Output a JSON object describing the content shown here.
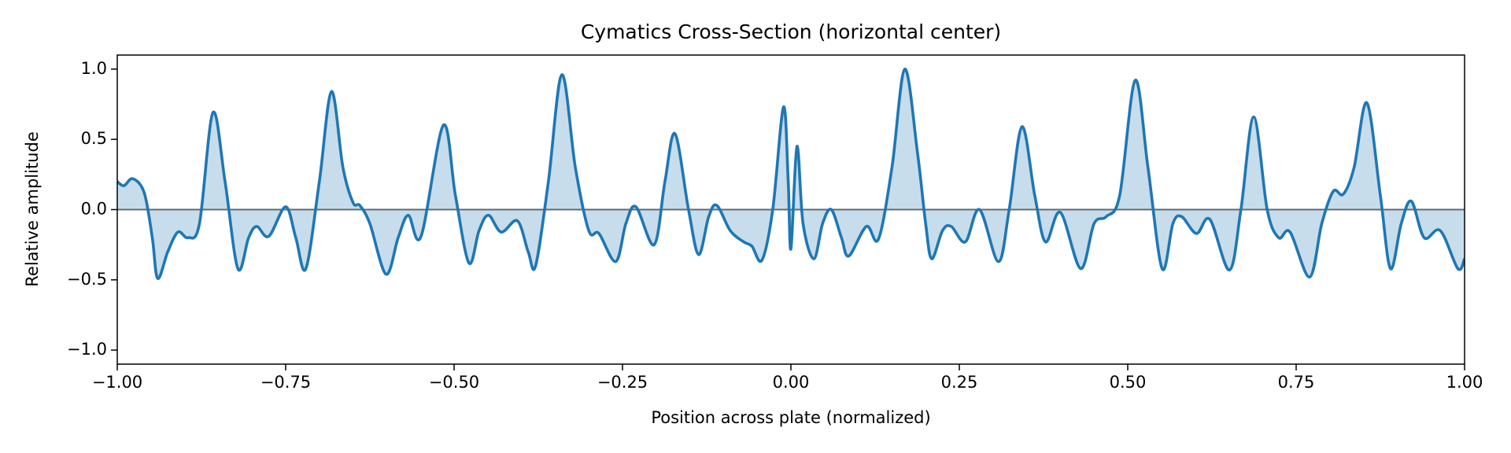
{
  "chart_data": {
    "type": "area-line",
    "title": "Cymatics Cross-Section (horizontal center)",
    "x_label": "Position across plate (normalized)",
    "y_label": "Relative amplitude",
    "color": "#1f77b4",
    "x": [
      -1.0,
      -0.99,
      -0.977,
      -0.96,
      -0.948,
      -0.94,
      -0.925,
      -0.91,
      -0.895,
      -0.878,
      -0.858,
      -0.84,
      -0.821,
      -0.805,
      -0.793,
      -0.775,
      -0.75,
      -0.735,
      -0.72,
      -0.7,
      -0.682,
      -0.665,
      -0.65,
      -0.64,
      -0.625,
      -0.601,
      -0.583,
      -0.568,
      -0.549,
      -0.516,
      -0.498,
      -0.478,
      -0.463,
      -0.449,
      -0.43,
      -0.406,
      -0.39,
      -0.379,
      -0.36,
      -0.34,
      -0.32,
      -0.3,
      -0.285,
      -0.26,
      -0.245,
      -0.23,
      -0.203,
      -0.187,
      -0.172,
      -0.152,
      -0.137,
      -0.122,
      -0.11,
      -0.09,
      -0.07,
      -0.058,
      -0.043,
      -0.027,
      -0.011,
      -0.004,
      0.0,
      0.009,
      0.018,
      0.034,
      0.047,
      0.06,
      0.075,
      0.086,
      0.112,
      0.13,
      0.15,
      0.169,
      0.188,
      0.2,
      0.209,
      0.225,
      0.238,
      0.259,
      0.28,
      0.308,
      0.324,
      0.343,
      0.362,
      0.378,
      0.4,
      0.43,
      0.45,
      0.468,
      0.488,
      0.511,
      0.53,
      0.551,
      0.567,
      0.58,
      0.602,
      0.622,
      0.651,
      0.668,
      0.687,
      0.707,
      0.724,
      0.741,
      0.77,
      0.788,
      0.805,
      0.82,
      0.836,
      0.855,
      0.875,
      0.89,
      0.906,
      0.921,
      0.94,
      0.964,
      0.99,
      1.0
    ],
    "values": [
      0.2,
      0.17,
      0.22,
      0.12,
      -0.2,
      -0.49,
      -0.3,
      -0.16,
      -0.2,
      -0.1,
      0.69,
      0.2,
      -0.42,
      -0.2,
      -0.12,
      -0.19,
      0.02,
      -0.2,
      -0.42,
      0.2,
      0.84,
      0.3,
      0.05,
      0.03,
      -0.1,
      -0.46,
      -0.2,
      -0.04,
      -0.19,
      0.6,
      0.1,
      -0.38,
      -0.15,
      -0.04,
      -0.16,
      -0.08,
      -0.3,
      -0.4,
      0.2,
      0.96,
      0.3,
      -0.15,
      -0.17,
      -0.37,
      -0.1,
      0.02,
      -0.25,
      0.2,
      0.54,
      0.0,
      -0.32,
      -0.05,
      0.03,
      -0.15,
      -0.23,
      -0.26,
      -0.36,
      0.0,
      0.73,
      0.2,
      -0.28,
      0.45,
      -0.1,
      -0.35,
      -0.1,
      0.0,
      -0.2,
      -0.33,
      -0.12,
      -0.21,
      0.3,
      1.0,
      0.4,
      -0.1,
      -0.35,
      -0.15,
      -0.12,
      -0.23,
      0.0,
      -0.37,
      0.0,
      0.59,
      0.1,
      -0.23,
      -0.02,
      -0.42,
      -0.1,
      -0.05,
      0.1,
      0.92,
      0.3,
      -0.42,
      -0.1,
      -0.05,
      -0.17,
      -0.07,
      -0.43,
      0.0,
      0.66,
      0.0,
      -0.2,
      -0.16,
      -0.48,
      -0.1,
      0.13,
      0.11,
      0.3,
      0.76,
      0.1,
      -0.42,
      -0.1,
      0.06,
      -0.2,
      -0.15,
      -0.42,
      -0.35
    ],
    "xlim": [
      -1.0,
      1.0
    ],
    "ylim": [
      -1.1,
      1.1
    ],
    "xticks": [
      {
        "value": -1.0,
        "label": "−1.00"
      },
      {
        "value": -0.75,
        "label": "−0.75"
      },
      {
        "value": -0.5,
        "label": "−0.50"
      },
      {
        "value": -0.25,
        "label": "−0.25"
      },
      {
        "value": 0.0,
        "label": "0.00"
      },
      {
        "value": 0.25,
        "label": "0.25"
      },
      {
        "value": 0.5,
        "label": "0.50"
      },
      {
        "value": 0.75,
        "label": "0.75"
      },
      {
        "value": 1.0,
        "label": "1.00"
      }
    ],
    "yticks": [
      {
        "value": -1.0,
        "label": "−1.0"
      },
      {
        "value": -0.5,
        "label": "−0.5"
      },
      {
        "value": 0.0,
        "label": "0.0"
      },
      {
        "value": 0.5,
        "label": "0.5"
      },
      {
        "value": 1.0,
        "label": "1.0"
      }
    ]
  }
}
